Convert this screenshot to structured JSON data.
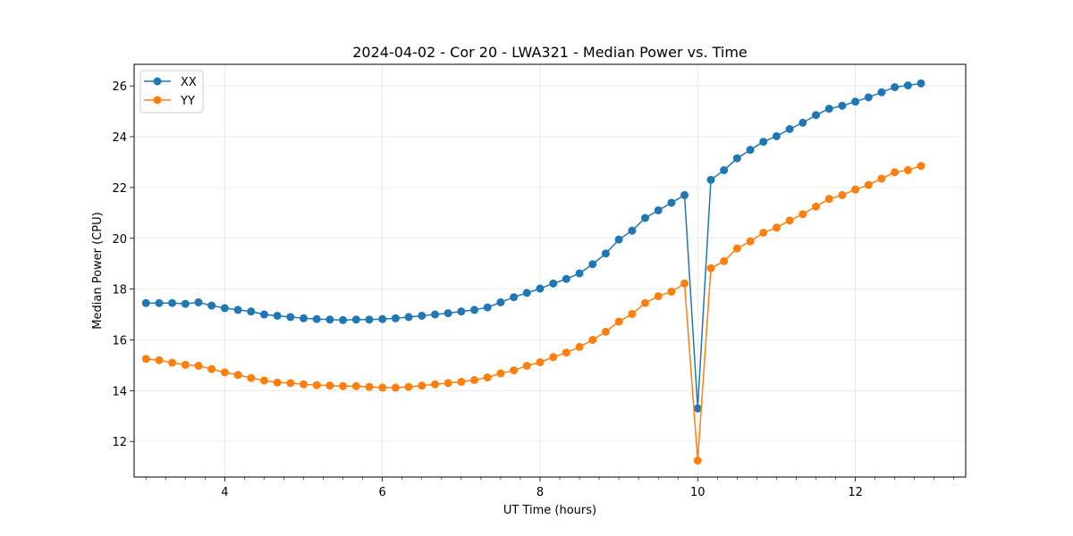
{
  "chart_data": {
    "type": "line",
    "title": "2024-04-02 - Cor 20 - LWA321 - Median Power vs. Time",
    "xlabel": "UT Time (hours)",
    "ylabel": "Median Power (CPU)",
    "xlim": [
      2.85,
      13.4
    ],
    "ylim": [
      10.6,
      26.85
    ],
    "xticks": [
      4,
      6,
      8,
      10,
      12
    ],
    "yticks": [
      12,
      14,
      16,
      18,
      20,
      22,
      24,
      26
    ],
    "grid": true,
    "legend_position": "top-left",
    "x": [
      3.0,
      3.167,
      3.333,
      3.5,
      3.667,
      3.833,
      4.0,
      4.167,
      4.333,
      4.5,
      4.667,
      4.833,
      5.0,
      5.167,
      5.333,
      5.5,
      5.667,
      5.833,
      6.0,
      6.167,
      6.333,
      6.5,
      6.667,
      6.833,
      7.0,
      7.167,
      7.333,
      7.5,
      7.667,
      7.833,
      8.0,
      8.167,
      8.333,
      8.5,
      8.667,
      8.833,
      9.0,
      9.167,
      9.333,
      9.5,
      9.667,
      9.833,
      10.0,
      10.167,
      10.333,
      10.5,
      10.667,
      10.833,
      11.0,
      11.167,
      11.333,
      11.5,
      11.667,
      11.833,
      12.0,
      12.167,
      12.333,
      12.5,
      12.667,
      12.833
    ],
    "series": [
      {
        "name": "XX",
        "color": "#1f77b4",
        "values": [
          17.45,
          17.45,
          17.45,
          17.42,
          17.48,
          17.35,
          17.25,
          17.18,
          17.12,
          17.0,
          16.95,
          16.9,
          16.85,
          16.82,
          16.8,
          16.78,
          16.8,
          16.8,
          16.82,
          16.85,
          16.9,
          16.95,
          17.0,
          17.05,
          17.12,
          17.18,
          17.28,
          17.48,
          17.68,
          17.85,
          18.02,
          18.22,
          18.4,
          18.62,
          18.98,
          19.4,
          19.95,
          20.3,
          20.8,
          21.1,
          21.4,
          21.7,
          13.3,
          22.3,
          22.68,
          23.15,
          23.48,
          23.8,
          24.02,
          24.3,
          24.55,
          24.85,
          25.1,
          25.22,
          25.38,
          25.55,
          25.75,
          25.95,
          26.02,
          26.1
        ]
      },
      {
        "name": "YY",
        "color": "#ff7f0e",
        "values": [
          15.25,
          15.2,
          15.1,
          15.02,
          14.98,
          14.85,
          14.72,
          14.62,
          14.5,
          14.4,
          14.32,
          14.3,
          14.25,
          14.22,
          14.2,
          14.18,
          14.18,
          14.15,
          14.12,
          14.12,
          14.15,
          14.2,
          14.25,
          14.3,
          14.35,
          14.42,
          14.52,
          14.68,
          14.8,
          14.98,
          15.12,
          15.32,
          15.5,
          15.72,
          16.0,
          16.32,
          16.72,
          17.02,
          17.45,
          17.72,
          17.9,
          18.22,
          11.25,
          18.82,
          19.1,
          19.6,
          19.88,
          20.22,
          20.42,
          20.7,
          20.95,
          21.25,
          21.55,
          21.7,
          21.92,
          22.1,
          22.35,
          22.6,
          22.68,
          22.85
        ]
      }
    ]
  }
}
